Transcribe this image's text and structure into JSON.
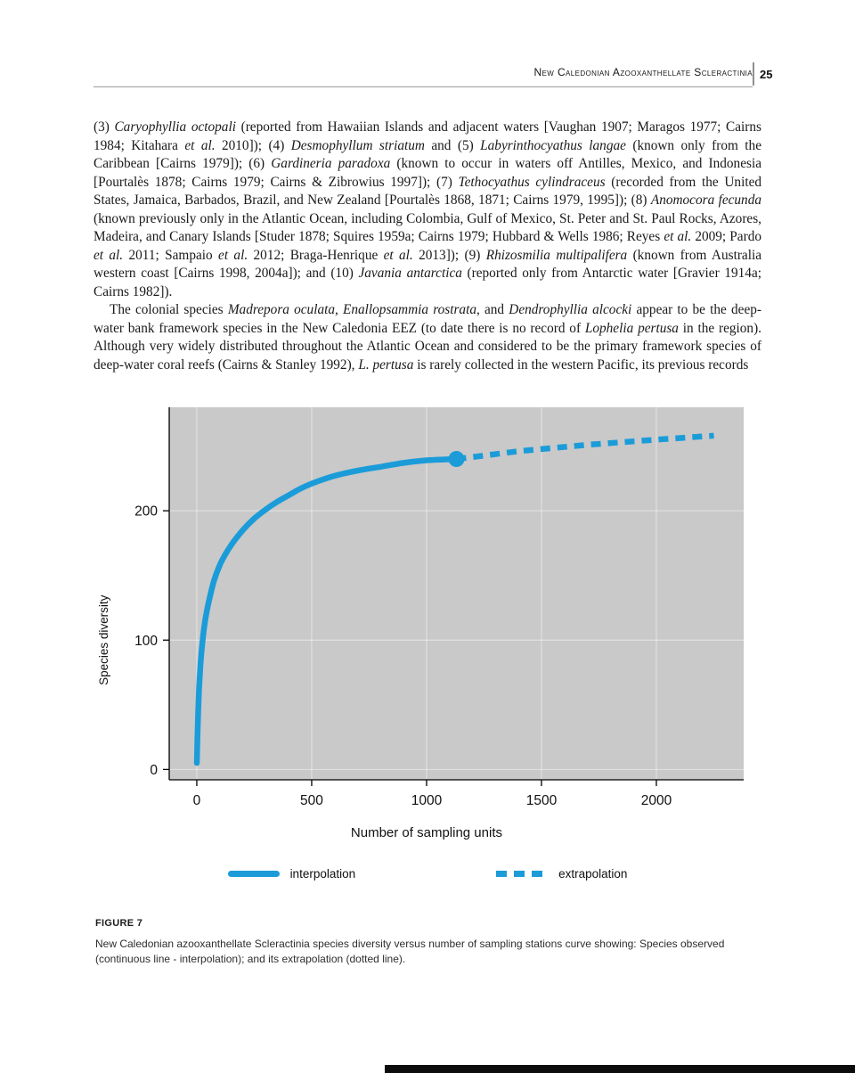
{
  "page": {
    "header": {
      "running_title": "New Caledonian Azooxanthellate Scleractinia",
      "page_number": "25"
    },
    "paragraphs": [
      {
        "indent": false,
        "segments": [
          {
            "t": "(3) "
          },
          {
            "t": "Caryophyllia octopali",
            "i": true
          },
          {
            "t": " (reported from Hawaiian Islands and adjacent waters [Vaughan 1907; Maragos 1977; Cairns 1984; Kitahara "
          },
          {
            "t": "et al.",
            "i": true
          },
          {
            "t": " 2010]); (4) "
          },
          {
            "t": "Desmophyllum striatum",
            "i": true
          },
          {
            "t": " and (5) "
          },
          {
            "t": "Labyrinthocyathus langae",
            "i": true
          },
          {
            "t": " (known only from the Caribbean [Cairns 1979]); (6) "
          },
          {
            "t": "Gardineria paradoxa",
            "i": true
          },
          {
            "t": " (known to occur in waters off Antilles, Mexico, and Indonesia [Pourtalès 1878; Cairns 1979; Cairns & Zibrowius 1997]); (7) "
          },
          {
            "t": "Tethocyathus cylindraceus",
            "i": true
          },
          {
            "t": " (recorded from the United States, Jamaica, Barbados, Brazil, and New Zealand [Pourtalès 1868, 1871; Cairns 1979, 1995]); (8) "
          },
          {
            "t": "Anomocora fecunda",
            "i": true
          },
          {
            "t": " (known previously only in the Atlantic Ocean, including Colombia, Gulf of Mexico, St. Peter and St. Paul Rocks, Azores, Madeira, and Canary Islands [Studer 1878; Squires 1959a; Cairns 1979; Hubbard & Wells 1986; Reyes "
          },
          {
            "t": "et al.",
            "i": true
          },
          {
            "t": " 2009; Pardo "
          },
          {
            "t": "et al.",
            "i": true
          },
          {
            "t": " 2011; Sampaio "
          },
          {
            "t": "et al.",
            "i": true
          },
          {
            "t": " 2012; Braga-Henrique "
          },
          {
            "t": "et al.",
            "i": true
          },
          {
            "t": " 2013]); (9) "
          },
          {
            "t": "Rhizosmilia multipalifera",
            "i": true
          },
          {
            "t": " (known from Australia western coast [Cairns 1998, 2004a]); and (10) "
          },
          {
            "t": "Javania antarctica",
            "i": true
          },
          {
            "t": " (reported only from Antarctic water [Gravier 1914a; Cairns 1982])."
          }
        ]
      },
      {
        "indent": true,
        "segments": [
          {
            "t": "The colonial species "
          },
          {
            "t": "Madrepora oculata",
            "i": true
          },
          {
            "t": ", "
          },
          {
            "t": "Enallopsammia rostrata",
            "i": true
          },
          {
            "t": ", and "
          },
          {
            "t": "Dendrophyllia alcocki",
            "i": true
          },
          {
            "t": " appear to be the deep-water bank framework species in the New Caledonia EEZ (to date there is no record of "
          },
          {
            "t": "Lophelia pertusa",
            "i": true
          },
          {
            "t": " in the region). Although very widely distributed throughout the Atlantic Ocean and considered to be the primary framework species of deep-water coral reefs (Cairns & Stanley 1992), "
          },
          {
            "t": "L. pertusa",
            "i": true
          },
          {
            "t": " is rarely collected in the western Pacific, its previous records"
          }
        ]
      }
    ],
    "figure": {
      "label": "FIGURE 7",
      "caption": "New Caledonian azooxanthellate Scleractinia species diversity versus number of sampling stations curve showing: Species observed (continuous line - interpolation); and its extrapolation (dotted line)."
    }
  },
  "chart_data": {
    "type": "line",
    "title": "",
    "xlabel": "Number of sampling units",
    "ylabel": "Species diversity",
    "xlim": [
      -120,
      2380
    ],
    "ylim": [
      -8,
      280
    ],
    "x_ticks": [
      0,
      500,
      1000,
      1500,
      2000
    ],
    "y_ticks": [
      0,
      100,
      200
    ],
    "grid": true,
    "legend_position": "bottom",
    "plot_background": "#c9c9c9",
    "grid_color": "#ffffff",
    "line_color": "#1b9cd9",
    "series": [
      {
        "name": "interpolation",
        "style": "solid",
        "points": [
          [
            0,
            5
          ],
          [
            3,
            25
          ],
          [
            6,
            44
          ],
          [
            10,
            62
          ],
          [
            15,
            78
          ],
          [
            20,
            90
          ],
          [
            30,
            107
          ],
          [
            40,
            119
          ],
          [
            55,
            132
          ],
          [
            75,
            146
          ],
          [
            100,
            158
          ],
          [
            130,
            168
          ],
          [
            160,
            176
          ],
          [
            200,
            185
          ],
          [
            250,
            194
          ],
          [
            300,
            201
          ],
          [
            350,
            207
          ],
          [
            400,
            212
          ],
          [
            450,
            217
          ],
          [
            500,
            221
          ],
          [
            600,
            227
          ],
          [
            700,
            231
          ],
          [
            800,
            234
          ],
          [
            900,
            237
          ],
          [
            1000,
            239
          ],
          [
            1130,
            240
          ]
        ]
      },
      {
        "name": "extrapolation",
        "style": "dotted",
        "points": [
          [
            1130,
            240
          ],
          [
            1400,
            246
          ],
          [
            1700,
            251
          ],
          [
            2000,
            255
          ],
          [
            2250,
            258
          ]
        ]
      }
    ],
    "junction_marker": {
      "x": 1130,
      "y": 240
    }
  }
}
